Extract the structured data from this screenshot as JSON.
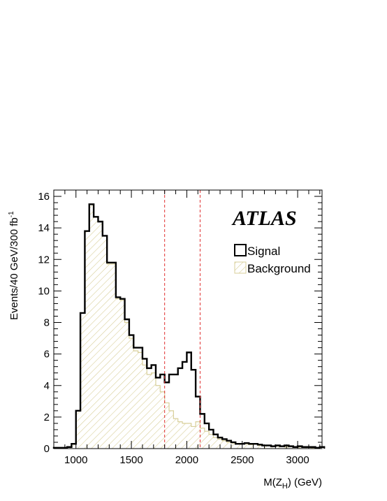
{
  "chart_data": {
    "type": "histogram",
    "xlabel": "M(Z_H) (GeV)",
    "ylabel": "Events/40 GeV/300 fb^-1",
    "xlim": [
      800,
      3220
    ],
    "ylim": [
      0,
      16.4
    ],
    "x_ticks": [
      1000,
      1500,
      2000,
      2500,
      3000
    ],
    "y_ticks": [
      0,
      2,
      4,
      6,
      8,
      10,
      12,
      14,
      16
    ],
    "bin_width": 40,
    "bin_start": 800,
    "experiment_label": "ATLAS",
    "vertical_lines": [
      1800,
      2120
    ],
    "vertical_line_color": "#e03030",
    "legend": {
      "placement": "top-right",
      "entries": [
        {
          "label": "Signal",
          "style": "line",
          "color": "#000000"
        },
        {
          "label": "Background",
          "style": "hatched-fill",
          "color": "#d8cf9a"
        }
      ]
    },
    "series": [
      {
        "name": "Signal",
        "color": "#000000",
        "values": [
          0.05,
          0.05,
          0.05,
          0.1,
          0.3,
          2.4,
          8.6,
          13.8,
          15.5,
          14.7,
          14.4,
          13.5,
          11.8,
          11.8,
          9.6,
          9.5,
          8.2,
          7.2,
          6.4,
          6.4,
          5.7,
          5.1,
          5.3,
          4.5,
          4.7,
          4.2,
          4.7,
          4.7,
          5.1,
          5.5,
          6.1,
          5.0,
          3.3,
          2.2,
          1.6,
          1.2,
          0.9,
          0.7,
          0.6,
          0.5,
          0.4,
          0.3,
          0.3,
          0.35,
          0.3,
          0.3,
          0.25,
          0.2,
          0.2,
          0.15,
          0.2,
          0.15,
          0.2,
          0.15,
          0.1,
          0.15,
          0.1,
          0.1,
          0.1,
          0.05,
          0.1
        ]
      },
      {
        "name": "Background",
        "color": "#d8cf9a",
        "values": [
          0.05,
          0.05,
          0.05,
          0.1,
          0.3,
          2.4,
          8.6,
          13.8,
          15.5,
          14.7,
          14.4,
          13.5,
          11.7,
          11.7,
          9.5,
          9.4,
          8.0,
          7.0,
          6.2,
          6.1,
          5.3,
          4.7,
          4.8,
          4.0,
          3.6,
          2.9,
          2.4,
          1.9,
          1.7,
          1.6,
          1.6,
          1.4,
          1.7,
          1.3,
          1.1,
          0.9,
          0.7,
          0.6,
          0.5,
          0.4,
          0.35,
          0.3,
          0.3,
          0.3,
          0.25,
          0.3,
          0.2,
          0.2,
          0.2,
          0.15,
          0.15,
          0.15,
          0.1,
          0.15,
          0.1,
          0.1,
          0.1,
          0.1,
          0.05,
          0.05,
          0.1
        ]
      }
    ]
  }
}
